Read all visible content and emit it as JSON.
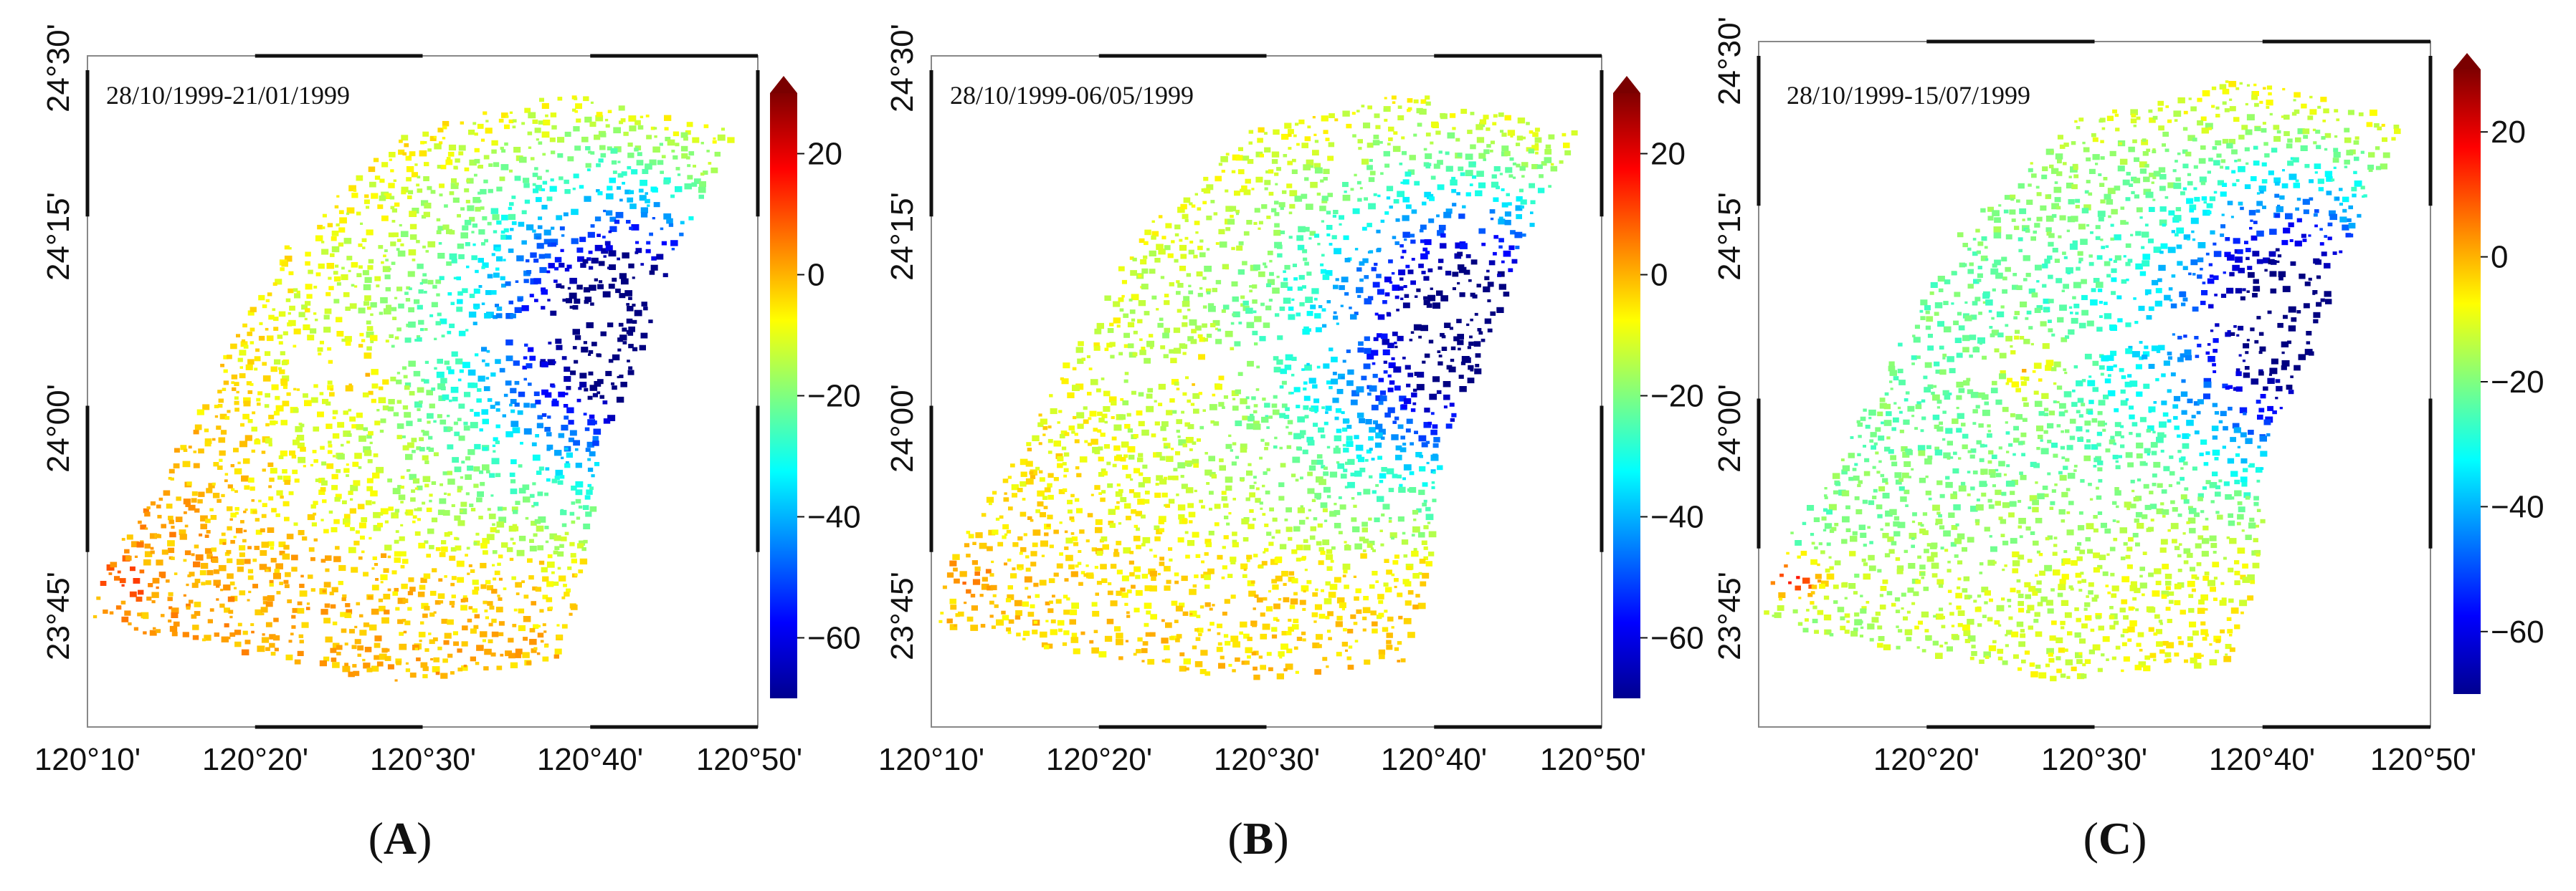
{
  "figure": {
    "colorbar": {
      "colormap": "jet",
      "range": [
        -70,
        30
      ],
      "ticks": [
        20,
        0,
        -20,
        -40,
        -60
      ],
      "tick_labels": [
        "20",
        "0",
        "−20",
        "−40",
        "−60"
      ]
    },
    "panels": [
      {
        "id": "A",
        "label_letter": "A",
        "label_open": "(",
        "label_close": ")",
        "date_range": "28/10/1999-21/01/1999",
        "lon_labels": [
          "120°10'",
          "120°20'",
          "120°30'",
          "120°40'",
          "120°50'"
        ],
        "lat_labels": [
          "24°30'",
          "24°15'",
          "24°00'",
          "23°45'"
        ],
        "field": {
          "ne_value": -68,
          "west_value": 4,
          "sw_value": 2,
          "hotspots": [
            12,
            8
          ]
        }
      },
      {
        "id": "B",
        "label_letter": "B",
        "label_open": "(",
        "label_close": ")",
        "date_range": "28/10/1999-06/05/1999",
        "lon_labels": [
          "120°10'",
          "120°20'",
          "120°30'",
          "120°40'",
          "120°50'"
        ],
        "lat_labels": [
          "24°30'",
          "24°15'",
          "24°00'",
          "23°45'"
        ],
        "field": {
          "ne_value": -66,
          "west_value": -2,
          "sw_value": -3,
          "hotspots": [
            6,
            3
          ]
        }
      },
      {
        "id": "C",
        "label_letter": "C",
        "label_open": "(",
        "label_close": ")",
        "date_range": "28/10/1999-15/07/1999",
        "lon_labels": [
          "120°20'",
          "120°30'",
          "120°40'",
          "120°50'"
        ],
        "lat_labels": [
          "24°30'",
          "24°15'",
          "24°00'",
          "23°45'"
        ],
        "field": {
          "ne_value": -64,
          "west_value": -22,
          "sw_value": -16,
          "hotspots": [
            22,
            10
          ]
        }
      }
    ]
  }
}
